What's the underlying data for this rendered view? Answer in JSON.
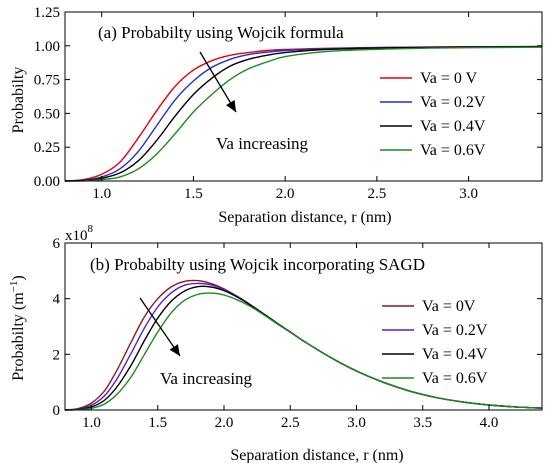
{
  "chart_data": [
    {
      "type": "line",
      "title": "(a) Probabilty using Wojcik formula",
      "xlabel": "Separation distance, r (nm)",
      "ylabel": "Probabilty",
      "xlim": [
        0.8,
        3.4
      ],
      "ylim": [
        0.0,
        1.25
      ],
      "xticks": [
        "1.0",
        "1.5",
        "2.0",
        "2.5",
        "3.0"
      ],
      "yticks": [
        "0.00",
        "0.25",
        "0.50",
        "0.75",
        "1.00",
        "1.25"
      ],
      "annotation": "Va increasing",
      "legend_position": "right",
      "x": [
        0.8,
        0.9,
        1.0,
        1.1,
        1.2,
        1.3,
        1.4,
        1.5,
        1.6,
        1.7,
        1.8,
        1.9,
        2.0,
        2.2,
        2.4,
        2.6,
        2.8,
        3.0,
        3.2,
        3.4
      ],
      "series": [
        {
          "name": "Va = 0 V",
          "color": "#e8000b",
          "values": [
            0.0,
            0.01,
            0.05,
            0.14,
            0.32,
            0.52,
            0.7,
            0.82,
            0.89,
            0.93,
            0.95,
            0.965,
            0.973,
            0.981,
            0.986,
            0.989,
            0.991,
            0.993,
            0.994,
            0.995
          ]
        },
        {
          "name": "Va = 0.2V",
          "color": "#1f2fd6",
          "values": [
            0.0,
            0.005,
            0.03,
            0.09,
            0.22,
            0.41,
            0.6,
            0.74,
            0.84,
            0.9,
            0.935,
            0.953,
            0.965,
            0.977,
            0.984,
            0.988,
            0.99,
            0.992,
            0.993,
            0.994
          ]
        },
        {
          "name": "Va = 0.4V",
          "color": "#000000",
          "values": [
            0.0,
            0.003,
            0.02,
            0.06,
            0.15,
            0.3,
            0.48,
            0.64,
            0.76,
            0.85,
            0.9,
            0.93,
            0.95,
            0.971,
            0.98,
            0.985,
            0.988,
            0.99,
            0.992,
            0.993
          ]
        },
        {
          "name": "Va = 0.6V",
          "color": "#1d8a1d",
          "values": [
            0.0,
            0.001,
            0.01,
            0.03,
            0.09,
            0.2,
            0.35,
            0.51,
            0.64,
            0.75,
            0.83,
            0.88,
            0.92,
            0.955,
            0.97,
            0.978,
            0.983,
            0.986,
            0.988,
            0.99
          ]
        }
      ]
    },
    {
      "type": "line",
      "title": "(b) Probabilty using Wojcik incorporating SAGD",
      "xlabel": "Separation distance, r (nm)",
      "ylabel": "Probabilty (m",
      "ylabel_sup": "−1",
      "ylabel_close": ")",
      "scale_label": "x10",
      "scale_exp": "8",
      "xlim": [
        0.8,
        4.4
      ],
      "ylim": [
        0,
        6
      ],
      "xticks": [
        "1.0",
        "1.5",
        "2.0",
        "2.5",
        "3.0",
        "3.5",
        "4.0"
      ],
      "yticks": [
        "0",
        "2",
        "4",
        "6"
      ],
      "annotation": "Va increasing",
      "legend_position": "right",
      "x": [
        0.8,
        0.9,
        1.0,
        1.1,
        1.2,
        1.3,
        1.4,
        1.5,
        1.6,
        1.7,
        1.8,
        1.9,
        2.0,
        2.1,
        2.2,
        2.3,
        2.4,
        2.5,
        2.6,
        2.8,
        3.0,
        3.2,
        3.4,
        3.6,
        3.8,
        4.0,
        4.2,
        4.4
      ],
      "series": [
        {
          "name": "Va = 0V",
          "color": "#8b1a1a",
          "values": [
            0.0,
            0.05,
            0.25,
            0.7,
            1.5,
            2.45,
            3.35,
            4.0,
            4.42,
            4.62,
            4.65,
            4.55,
            4.35,
            4.08,
            3.78,
            3.45,
            3.12,
            2.8,
            2.48,
            1.9,
            1.4,
            1.0,
            0.68,
            0.45,
            0.29,
            0.18,
            0.11,
            0.07
          ]
        },
        {
          "name": "Va = 0.2V",
          "color": "#5a1fd1",
          "values": [
            0.0,
            0.03,
            0.17,
            0.52,
            1.18,
            2.05,
            2.95,
            3.7,
            4.2,
            4.48,
            4.55,
            4.5,
            4.33,
            4.08,
            3.78,
            3.45,
            3.12,
            2.8,
            2.48,
            1.9,
            1.4,
            1.0,
            0.68,
            0.45,
            0.29,
            0.18,
            0.11,
            0.07
          ]
        },
        {
          "name": "Va = 0.4V",
          "color": "#000000",
          "values": [
            0.0,
            0.02,
            0.11,
            0.36,
            0.88,
            1.62,
            2.5,
            3.3,
            3.9,
            4.27,
            4.43,
            4.42,
            4.29,
            4.06,
            3.77,
            3.45,
            3.12,
            2.8,
            2.48,
            1.9,
            1.4,
            1.0,
            0.68,
            0.45,
            0.29,
            0.18,
            0.11,
            0.07
          ]
        },
        {
          "name": "Va = 0.6V",
          "color": "#1d8a1d",
          "values": [
            0.0,
            0.01,
            0.06,
            0.22,
            0.6,
            1.2,
            2.0,
            2.8,
            3.48,
            3.93,
            4.15,
            4.2,
            4.13,
            3.96,
            3.72,
            3.42,
            3.1,
            2.79,
            2.48,
            1.9,
            1.4,
            1.0,
            0.68,
            0.45,
            0.29,
            0.18,
            0.11,
            0.07
          ]
        }
      ]
    }
  ]
}
